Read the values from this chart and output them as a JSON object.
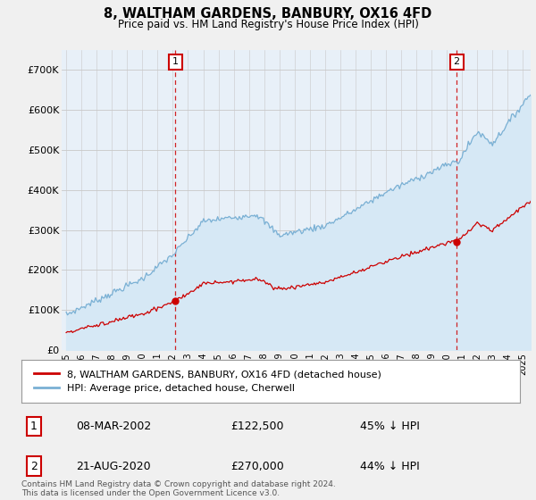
{
  "title": "8, WALTHAM GARDENS, BANBURY, OX16 4FD",
  "subtitle": "Price paid vs. HM Land Registry's House Price Index (HPI)",
  "sale1": {
    "date": "08-MAR-2002",
    "price": 122500,
    "pct": "45% ↓ HPI",
    "label": "1"
  },
  "sale2": {
    "date": "21-AUG-2020",
    "price": 270000,
    "pct": "44% ↓ HPI",
    "label": "2"
  },
  "sale1_year": 2002.18,
  "sale2_year": 2020.64,
  "sale1_price": 122500,
  "sale2_price": 270000,
  "legend_line1": "8, WALTHAM GARDENS, BANBURY, OX16 4FD (detached house)",
  "legend_line2": "HPI: Average price, detached house, Cherwell",
  "footnote1": "Contains HM Land Registry data © Crown copyright and database right 2024.",
  "footnote2": "This data is licensed under the Open Government Licence v3.0.",
  "hpi_color": "#7ab0d4",
  "hpi_fill_color": "#d6e8f5",
  "price_color": "#cc0000",
  "vline_color": "#cc0000",
  "ylim": [
    0,
    750000
  ],
  "yticks": [
    0,
    100000,
    200000,
    300000,
    400000,
    500000,
    600000,
    700000
  ],
  "ytick_labels": [
    "£0",
    "£100K",
    "£200K",
    "£300K",
    "£400K",
    "£500K",
    "£600K",
    "£700K"
  ],
  "background_color": "#f0f0f0",
  "plot_bg_color": "#e8f0f8",
  "xmin": 1994.7,
  "xmax": 2025.5
}
